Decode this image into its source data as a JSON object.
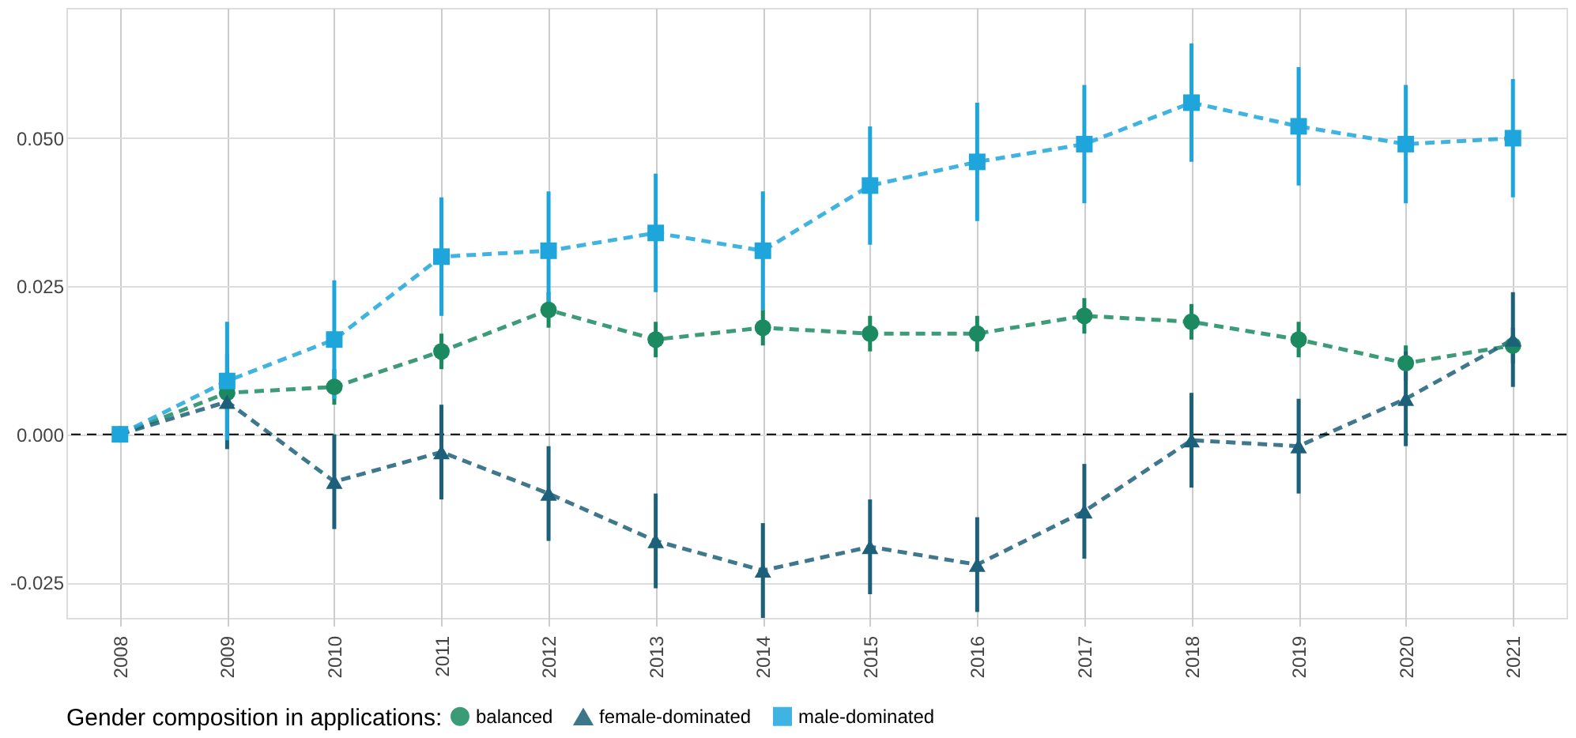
{
  "chart_data": {
    "type": "line",
    "categories": [
      "2008",
      "2009",
      "2010",
      "2011",
      "2012",
      "2013",
      "2014",
      "2015",
      "2016",
      "2017",
      "2018",
      "2019",
      "2020",
      "2021"
    ],
    "series": [
      {
        "name": "balanced",
        "color": "#1b8a60",
        "marker": "circle",
        "values": [
          0,
          0.007,
          0.008,
          0.014,
          0.021,
          0.016,
          0.018,
          0.017,
          0.017,
          0.02,
          0.019,
          0.016,
          0.012,
          0.015
        ],
        "errors": [
          0,
          0.003,
          0.003,
          0.003,
          0.003,
          0.003,
          0.003,
          0.003,
          0.003,
          0.003,
          0.003,
          0.003,
          0.003,
          0.003
        ]
      },
      {
        "name": "female-dominated",
        "color": "#1d6079",
        "marker": "triangle",
        "values": [
          0,
          0.0055,
          -0.008,
          -0.003,
          -0.01,
          -0.018,
          -0.023,
          -0.019,
          -0.022,
          -0.013,
          -0.001,
          -0.002,
          0.006,
          0.016
        ],
        "errors": [
          0,
          0.008,
          0.008,
          0.008,
          0.008,
          0.008,
          0.008,
          0.008,
          0.008,
          0.008,
          0.008,
          0.008,
          0.008,
          0.008
        ]
      },
      {
        "name": "male-dominated",
        "color": "#1ea6dc",
        "marker": "square",
        "values": [
          0,
          0.009,
          0.016,
          0.03,
          0.031,
          0.034,
          0.031,
          0.042,
          0.046,
          0.049,
          0.056,
          0.052,
          0.049,
          0.05
        ],
        "errors": [
          0,
          0.01,
          0.01,
          0.01,
          0.01,
          0.01,
          0.01,
          0.01,
          0.01,
          0.01,
          0.01,
          0.01,
          0.01,
          0.01
        ]
      }
    ],
    "ylim": [
      -0.031,
      0.072
    ],
    "yticks": [
      {
        "value": -0.025,
        "label": "-0.025"
      },
      {
        "value": 0,
        "label": "0.000"
      },
      {
        "value": 0.025,
        "label": "0.025"
      },
      {
        "value": 0.05,
        "label": "0.050"
      }
    ],
    "ref_lines": [
      {
        "axis": "y",
        "value": 0,
        "color": "#000000",
        "line_style": "dashed"
      }
    ],
    "legend_title": "Gender composition in applications:",
    "legend": "bottom",
    "grid": true,
    "line_style": "dashed"
  }
}
